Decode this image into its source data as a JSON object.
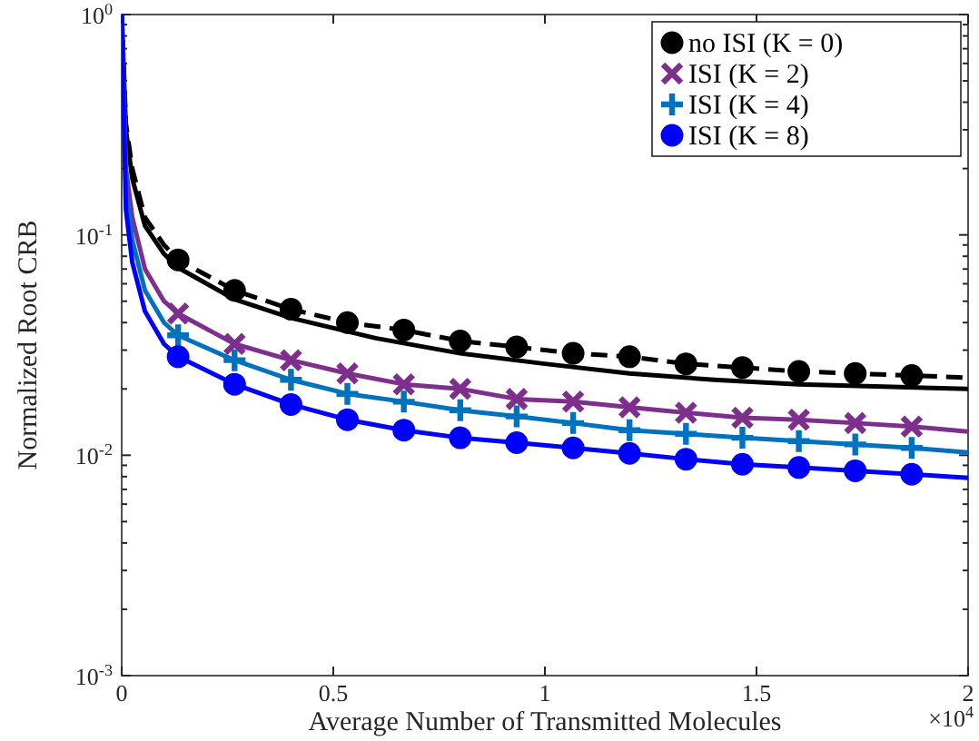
{
  "chart_data": {
    "type": "line",
    "xlabel": "Average Number of Transmitted Molecules",
    "ylabel": "Normalized Root CRB",
    "annotations": [
      "×10$^{4}$"
    ],
    "xlim": [
      0,
      2
    ],
    "xticks": [
      0,
      0.5,
      1,
      1.5,
      2
    ],
    "ylim": [
      0.001,
      1
    ],
    "yticks": [
      {
        "value": 0.001,
        "label": "10$^{-3}$"
      },
      {
        "value": 0.002,
        "label": null
      },
      {
        "value": 0.003,
        "label": null
      },
      {
        "value": 0.004,
        "label": null
      },
      {
        "value": 0.005,
        "label": null
      },
      {
        "value": 0.006,
        "label": null
      },
      {
        "value": 0.007,
        "label": null
      },
      {
        "value": 0.008,
        "label": null
      },
      {
        "value": 0.009,
        "label": null
      },
      {
        "value": 0.01,
        "label": "10$^{-2}$"
      },
      {
        "value": 0.02,
        "label": null
      },
      {
        "value": 0.03,
        "label": null
      },
      {
        "value": 0.04,
        "label": null
      },
      {
        "value": 0.05,
        "label": null
      },
      {
        "value": 0.06,
        "label": null
      },
      {
        "value": 0.07,
        "label": null
      },
      {
        "value": 0.08,
        "label": null
      },
      {
        "value": 0.09,
        "label": null
      },
      {
        "value": 0.1,
        "label": "10$^{-1}$"
      },
      {
        "value": 0.2,
        "label": null
      },
      {
        "value": 0.3,
        "label": null
      },
      {
        "value": 0.4,
        "label": null
      },
      {
        "value": 0.5,
        "label": null
      },
      {
        "value": 0.6,
        "label": null
      },
      {
        "value": 0.7,
        "label": null
      },
      {
        "value": 0.8,
        "label": null
      },
      {
        "value": 0.9,
        "label": null
      },
      {
        "value": 1,
        "label": "10$^{0}$"
      }
    ],
    "log": "y",
    "legend": "top right",
    "series": [
      {
        "color": "#000000",
        "line_style": "dashed",
        "marker": "none",
        "x": [
          0,
          0.01,
          0.025,
          0.055,
          0.1,
          0.1333,
          0.2667,
          0.4,
          0.5333,
          0.6667,
          0.8,
          0.9333,
          1.0667,
          1.2,
          1.3333,
          1.4667,
          1.6,
          1.7333,
          1.8667,
          2
        ],
        "values": [
          1,
          0.32,
          0.2,
          0.12,
          0.09,
          0.077,
          0.056,
          0.046,
          0.04,
          0.037,
          0.033,
          0.031,
          0.029,
          0.028,
          0.026,
          0.025,
          0.024,
          0.0235,
          0.023,
          0.0225
        ]
      },
      {
        "color": "#000000",
        "line_style": "solid",
        "marker": "none",
        "x": [
          0,
          0.01,
          0.025,
          0.055,
          0.1,
          0.1333,
          0.2667,
          0.4,
          0.6,
          0.8,
          1,
          1.2,
          1.4,
          1.6,
          1.8,
          2
        ],
        "values": [
          1,
          0.3,
          0.18,
          0.11,
          0.082,
          0.071,
          0.051,
          0.042,
          0.034,
          0.029,
          0.026,
          0.0235,
          0.022,
          0.021,
          0.0205,
          0.02
        ]
      },
      {
        "color": "#7e2f8e",
        "line_style": "solid",
        "marker": "none",
        "x": [
          0,
          0.01,
          0.025,
          0.055,
          0.1,
          0.1333,
          0.2667,
          0.4,
          0.5333,
          0.6667,
          0.8,
          0.9333,
          1.0667,
          1.2,
          1.3333,
          1.4667,
          1.6,
          1.7333,
          1.8667,
          2
        ],
        "values": [
          1,
          0.2,
          0.12,
          0.07,
          0.05,
          0.044,
          0.032,
          0.027,
          0.0235,
          0.021,
          0.02,
          0.018,
          0.0175,
          0.0165,
          0.0156,
          0.0148,
          0.0145,
          0.014,
          0.0135,
          0.0128
        ]
      },
      {
        "color": "#0072bd",
        "line_style": "solid",
        "marker": "none",
        "x": [
          0,
          0.01,
          0.025,
          0.055,
          0.1,
          0.1333,
          0.2667,
          0.4,
          0.5333,
          0.6667,
          0.8,
          0.9333,
          1.0667,
          1.2,
          1.3333,
          1.4667,
          1.6,
          1.7333,
          1.8667,
          2
        ],
        "values": [
          1,
          0.16,
          0.095,
          0.056,
          0.04,
          0.035,
          0.027,
          0.022,
          0.019,
          0.0175,
          0.016,
          0.015,
          0.014,
          0.013,
          0.0125,
          0.012,
          0.0116,
          0.0112,
          0.0108,
          0.0103
        ]
      },
      {
        "color": "#0000ff",
        "line_style": "solid",
        "marker": "none",
        "x": [
          0,
          0.01,
          0.025,
          0.055,
          0.1,
          0.1333,
          0.2667,
          0.4,
          0.5333,
          0.6667,
          0.8,
          0.9333,
          1.0667,
          1.2,
          1.3333,
          1.4667,
          1.6,
          1.7333,
          1.8667,
          2
        ],
        "values": [
          1,
          0.13,
          0.075,
          0.045,
          0.032,
          0.028,
          0.021,
          0.017,
          0.0145,
          0.013,
          0.012,
          0.0114,
          0.0108,
          0.0102,
          0.0096,
          0.0091,
          0.0088,
          0.0085,
          0.0082,
          0.0079
        ]
      },
      {
        "type": "scatter",
        "name": "no ISI (K = 0)",
        "color": "#000000",
        "marker": "circle",
        "x": [
          0.1333,
          0.2667,
          0.4,
          0.5333,
          0.6667,
          0.8,
          0.9333,
          1.0667,
          1.2,
          1.3333,
          1.4667,
          1.6,
          1.7333,
          1.8667
        ],
        "values": [
          0.077,
          0.056,
          0.046,
          0.04,
          0.037,
          0.033,
          0.031,
          0.029,
          0.028,
          0.026,
          0.025,
          0.024,
          0.0235,
          0.023
        ]
      },
      {
        "type": "scatter",
        "name": "ISI (K = 2)",
        "color": "#7e2f8e",
        "marker": "cross",
        "x": [
          0.1333,
          0.2667,
          0.4,
          0.5333,
          0.6667,
          0.8,
          0.9333,
          1.0667,
          1.2,
          1.3333,
          1.4667,
          1.6,
          1.7333,
          1.8667
        ],
        "values": [
          0.044,
          0.032,
          0.027,
          0.0235,
          0.021,
          0.02,
          0.018,
          0.0175,
          0.0165,
          0.0156,
          0.0148,
          0.0145,
          0.014,
          0.0135
        ]
      },
      {
        "type": "scatter",
        "name": "ISI (K = 4)",
        "color": "#0072bd",
        "marker": "plus",
        "x": [
          0.1333,
          0.2667,
          0.4,
          0.5333,
          0.6667,
          0.8,
          0.9333,
          1.0667,
          1.2,
          1.3333,
          1.4667,
          1.6,
          1.7333,
          1.8667
        ],
        "values": [
          0.035,
          0.027,
          0.022,
          0.019,
          0.0175,
          0.016,
          0.015,
          0.014,
          0.013,
          0.0125,
          0.012,
          0.0116,
          0.0112,
          0.0108
        ]
      },
      {
        "type": "scatter",
        "name": "ISI (K = 8)",
        "color": "#0000ff",
        "marker": "circle",
        "x": [
          0.1333,
          0.2667,
          0.4,
          0.5333,
          0.6667,
          0.8,
          0.9333,
          1.0667,
          1.2,
          1.3333,
          1.4667,
          1.6,
          1.7333,
          1.8667
        ],
        "values": [
          0.028,
          0.021,
          0.017,
          0.0145,
          0.013,
          0.012,
          0.0114,
          0.0108,
          0.0102,
          0.0096,
          0.0091,
          0.0088,
          0.0085,
          0.0082
        ]
      }
    ]
  }
}
